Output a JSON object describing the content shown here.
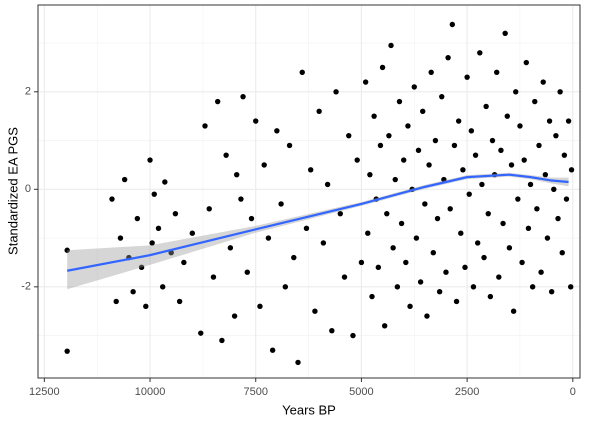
{
  "chart_data": {
    "type": "scatter",
    "x_label": "Years BP",
    "y_label": "Standardized EA PGS",
    "xlim": [
      12650,
      -170
    ],
    "ylim": [
      -3.87,
      3.78
    ],
    "xticks": [
      12500,
      10000,
      7500,
      5000,
      2500,
      0
    ],
    "yticks": [
      -2,
      0,
      2
    ],
    "xminorticks": [
      11250,
      8750,
      6250,
      3750,
      1250
    ],
    "yminorticks": [
      -3,
      -1,
      1,
      3
    ],
    "grid": true,
    "series": [
      {
        "color": "#000000",
        "x": [
          11960,
          11960,
          10900,
          10800,
          10700,
          10600,
          10500,
          10400,
          10300,
          10200,
          10100,
          10000,
          9950,
          9900,
          9800,
          9700,
          9650,
          9500,
          9400,
          9300,
          9200,
          9000,
          8800,
          8700,
          8600,
          8500,
          8400,
          8300,
          8200,
          8100,
          8000,
          7950,
          7850,
          7800,
          7700,
          7600,
          7500,
          7400,
          7300,
          7200,
          7100,
          7000,
          6900,
          6800,
          6700,
          6600,
          6500,
          6400,
          6300,
          6200,
          6100,
          6000,
          5900,
          5800,
          5700,
          5600,
          5500,
          5400,
          5300,
          5200,
          5100,
          5000,
          4900,
          4850,
          4800,
          4750,
          4700,
          4650,
          4600,
          4550,
          4500,
          4450,
          4400,
          4350,
          4300,
          4250,
          4200,
          4150,
          4100,
          4050,
          4000,
          3950,
          3900,
          3850,
          3800,
          3750,
          3700,
          3650,
          3600,
          3550,
          3500,
          3450,
          3400,
          3350,
          3300,
          3250,
          3200,
          3150,
          3100,
          3050,
          3000,
          2950,
          2900,
          2850,
          2800,
          2750,
          2700,
          2650,
          2600,
          2550,
          2500,
          2450,
          2400,
          2350,
          2300,
          2250,
          2200,
          2150,
          2100,
          2050,
          2000,
          1950,
          1900,
          1850,
          1800,
          1750,
          1700,
          1650,
          1600,
          1550,
          1500,
          1450,
          1400,
          1350,
          1300,
          1250,
          1200,
          1150,
          1100,
          1050,
          1000,
          950,
          900,
          850,
          800,
          750,
          700,
          650,
          600,
          550,
          500,
          450,
          400,
          350,
          300,
          250,
          200,
          150,
          100,
          50,
          30
        ],
        "values": [
          -1.25,
          -3.32,
          -0.2,
          -2.3,
          -1.0,
          0.2,
          -1.4,
          -2.1,
          -0.6,
          -1.6,
          -2.4,
          0.6,
          -1.1,
          -0.1,
          -0.8,
          -2.0,
          0.15,
          -1.3,
          -0.5,
          -2.3,
          -1.5,
          -0.9,
          -2.95,
          1.3,
          -0.4,
          -1.8,
          1.8,
          -3.1,
          0.7,
          -1.2,
          -2.6,
          0.3,
          -0.2,
          1.9,
          -1.7,
          -0.6,
          1.4,
          -2.4,
          0.5,
          -1.0,
          -3.3,
          1.2,
          -0.3,
          -2.0,
          0.9,
          -1.4,
          -3.55,
          2.4,
          -0.8,
          0.4,
          -2.5,
          1.6,
          -1.1,
          0.1,
          -2.9,
          2.0,
          -0.5,
          -1.8,
          1.1,
          -3.0,
          0.6,
          -1.5,
          2.2,
          -0.9,
          0.3,
          -2.2,
          1.5,
          -0.2,
          -1.6,
          0.9,
          2.5,
          -2.8,
          -0.5,
          1.1,
          2.95,
          -1.2,
          0.2,
          -2.0,
          1.8,
          -0.7,
          0.6,
          -1.5,
          1.3,
          -2.4,
          0.0,
          2.1,
          -1.0,
          0.8,
          -1.9,
          1.6,
          -0.3,
          -2.6,
          0.5,
          2.4,
          -1.3,
          1.0,
          -0.6,
          -2.1,
          1.9,
          0.2,
          -1.7,
          2.7,
          -0.4,
          3.38,
          0.9,
          -2.3,
          1.4,
          -0.9,
          0.4,
          -1.6,
          2.3,
          -0.1,
          1.2,
          -2.0,
          0.7,
          -1.1,
          2.8,
          0.1,
          -1.4,
          1.7,
          -0.5,
          -2.2,
          1.0,
          0.3,
          2.4,
          -1.8,
          0.8,
          -0.7,
          3.2,
          1.5,
          -1.2,
          0.5,
          -2.5,
          2.0,
          -0.2,
          1.3,
          -1.5,
          0.6,
          2.6,
          -0.8,
          0.1,
          -2.0,
          1.8,
          -0.4,
          0.9,
          -1.7,
          2.2,
          0.3,
          -1.0,
          1.4,
          -2.1,
          0.0,
          1.1,
          -0.6,
          2.0,
          -1.3,
          0.7,
          -0.2,
          1.4,
          -2.0,
          0.4
        ]
      }
    ],
    "smooth": {
      "color": "#3366ff",
      "x": [
        11960,
        10000,
        7500,
        5000,
        3500,
        2500,
        1500,
        1000,
        500,
        100
      ],
      "y": [
        -1.67,
        -1.35,
        -0.82,
        -0.3,
        0.05,
        0.25,
        0.3,
        0.25,
        0.18,
        0.15
      ],
      "lower": [
        -2.05,
        -1.55,
        -0.89,
        -0.34,
        0.01,
        0.21,
        0.26,
        0.21,
        0.12,
        0.06
      ],
      "upper": [
        -1.25,
        -1.15,
        -0.75,
        -0.26,
        0.09,
        0.29,
        0.34,
        0.29,
        0.24,
        0.24
      ]
    }
  }
}
